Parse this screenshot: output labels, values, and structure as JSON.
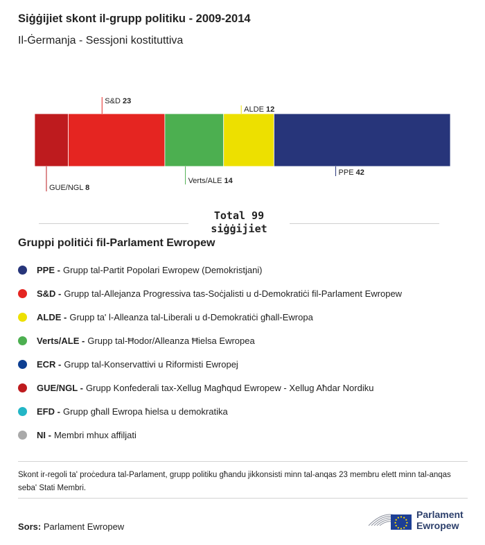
{
  "title": "Siġġijiet skont il-grupp politiku - 2009-2014",
  "subtitle": "Il-Ġermanja - Sessjoni kostituttiva",
  "total": {
    "line1": "Total 99",
    "line2": "siġġijiet"
  },
  "legend_title": "Gruppi politiċi fil-Parlament Ewropew",
  "legend": [
    {
      "abbr": "PPE -",
      "text": "Grupp tal-Partit Popolari Ewropew (Demokristjani)",
      "color": "#27357a"
    },
    {
      "abbr": "S&D -",
      "text": "Grupp tal-Allejanza Progressiva tas-Soċjalisti u d-Demokratiċi fil-Parlament Ewropew",
      "color": "#e52521"
    },
    {
      "abbr": "ALDE -",
      "text": "Grupp ta' l-Alleanza tal-Liberali u d-Demokratiċi għall-Ewropa",
      "color": "#ede000"
    },
    {
      "abbr": "Verts/ALE -",
      "text": "Grupp tal-Ħodor/Alleanza Ħielsa Ewropea",
      "color": "#4caf50"
    },
    {
      "abbr": "ECR -",
      "text": "Grupp tal-Konservattivi u Riformisti Ewropej",
      "color": "#0d3f92"
    },
    {
      "abbr": "GUE/NGL -",
      "text": "Grupp Konfederali tax-Xellug Magħqud Ewropew - Xellug Aħdar Nordiku",
      "color": "#be1b1e"
    },
    {
      "abbr": "EFD -",
      "text": "Grupp għall Ewropa ħielsa u demokratika",
      "color": "#23b6c6"
    },
    {
      "abbr": "NI -",
      "text": "Membri mhux affiljati",
      "color": "#a9a9a9"
    }
  ],
  "note": "Skont ir-regoli ta' proċedura tal-Parlament, grupp politiku għandu jikkonsisti minn tal-anqas 23 membru elett minn tal-anqas seba' Stati Membri.",
  "source": {
    "label": "Sors:",
    "value": "Parlament Ewropew"
  },
  "logo": {
    "line1": "Parlament",
    "line2": "Ewropew"
  },
  "chart_data": {
    "type": "bar",
    "orientation": "horizontal-stacked",
    "categories": [
      "GUE/NGL",
      "S&D",
      "Verts/ALE",
      "ALDE",
      "PPE"
    ],
    "values": [
      8,
      23,
      14,
      12,
      42
    ],
    "colors": [
      "#be1b1e",
      "#e52521",
      "#4caf50",
      "#ede000",
      "#27357a"
    ],
    "label_side": [
      "below",
      "above",
      "below",
      "above",
      "below"
    ],
    "total": 99
  }
}
